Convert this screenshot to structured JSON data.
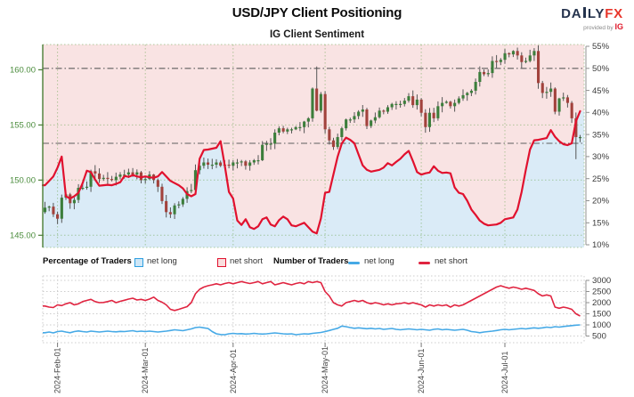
{
  "header": {
    "title": "USD/JPY Client Positioning",
    "subtitle": "IG Client Sentiment"
  },
  "logo": {
    "part1": "DA",
    "part2": "LY",
    "part3": "FX",
    "tagline": "provided by",
    "tagline_brand": "IG"
  },
  "legend": {
    "pct_header": "Percentage of Traders",
    "pct_long": "net long",
    "pct_short": "net short",
    "num_header": "Number of Traders",
    "num_long": "net long",
    "num_short": "net short"
  },
  "colors": {
    "pink_fill": "#f9e3e3",
    "blue_fill": "#daebf7",
    "sentiment_line": "#e1112e",
    "grid_green": "rgba(115,170,90,0.55)",
    "axis_green": "#4a8c3c",
    "spine_green": "#4a7d35",
    "candle_up": "#3c7e3b",
    "candle_down": "#a2423c",
    "wick": "#555555",
    "ref_line": "#5f5f5f",
    "right_axis_text": "#3a3a3a",
    "right_spine": "#909090",
    "bottom_grid": "#cccccc",
    "count_short": "#e02440",
    "count_long": "#45a9e6",
    "date_text": "#444444"
  },
  "chart_data": [
    {
      "type": "candlestick_with_sentiment_area",
      "title": "IG Client Sentiment",
      "price_axis": {
        "side": "left",
        "tick_values": [
          160,
          155,
          150,
          145
        ],
        "tick_labels": [
          "160.00",
          "155.00",
          "150.00",
          "145.00"
        ]
      },
      "pct_axis": {
        "side": "right",
        "min": 10,
        "max": 55,
        "step": 5,
        "tick_labels": [
          "55%",
          "50%",
          "45%",
          "40%",
          "35%",
          "30%",
          "25%",
          "20%",
          "15%",
          "10%"
        ],
        "tick_values": [
          55,
          50,
          45,
          40,
          35,
          30,
          25,
          20,
          15,
          10
        ]
      },
      "ref_lines_pct": [
        50,
        33
      ],
      "x_axis": {
        "tick_labels": [
          "2024-Feb-01",
          "2024-Mar-01",
          "2024-Apr-01",
          "2024-May-01",
          "2024-Jun-01",
          "2024-Jul-01"
        ],
        "tick_indices": [
          3,
          24,
          45,
          67,
          90,
          110
        ]
      },
      "series": {
        "close": [
          147.5,
          147.6,
          146.9,
          146.5,
          148.4,
          148.7,
          147.9,
          148.2,
          149.3,
          149.3,
          149.4,
          150.8,
          150.6,
          150.1,
          150.2,
          150.1,
          150.0,
          150.3,
          150.5,
          150.5,
          150.7,
          150.5,
          150.7,
          150.0,
          150.1,
          150.5,
          150.0,
          149.4,
          148.1,
          147.1,
          146.9,
          147.7,
          147.8,
          148.3,
          149.0,
          149.1,
          150.9,
          151.3,
          151.6,
          151.4,
          151.4,
          151.6,
          151.3,
          151.4,
          151.3,
          151.6,
          151.6,
          151.7,
          151.3,
          151.6,
          151.8,
          151.8,
          153.2,
          153.3,
          153.3,
          154.3,
          154.7,
          154.4,
          154.6,
          154.6,
          154.8,
          154.8,
          155.3,
          155.6,
          158.3,
          156.3,
          157.8,
          154.6,
          153.6,
          153.0,
          153.9,
          154.7,
          155.5,
          155.5,
          155.8,
          156.2,
          156.4,
          154.9,
          155.4,
          155.7,
          156.3,
          156.2,
          156.6,
          156.9,
          156.9,
          156.9,
          157.2,
          157.6,
          156.8,
          157.3,
          156.1,
          154.8,
          156.1,
          155.6,
          156.7,
          157.0,
          157.1,
          156.7,
          157.0,
          157.4,
          157.7,
          157.9,
          158.1,
          158.9,
          159.8,
          159.6,
          159.7,
          160.8,
          160.7,
          160.9,
          161.5,
          161.4,
          161.7,
          161.3,
          160.7,
          160.8,
          161.3,
          161.7,
          158.8,
          157.9,
          158.0,
          158.3,
          156.2,
          157.4,
          157.5,
          157.0,
          155.6,
          153.9,
          153.9
        ],
        "net_long_pct": [
          23.5,
          24.5,
          25.5,
          27.5,
          30.0,
          21.0,
          20.5,
          21.0,
          21.8,
          24.0,
          26.8,
          26.5,
          24.8,
          23.4,
          23.5,
          23.6,
          23.5,
          23.8,
          24.2,
          25.6,
          25.4,
          25.8,
          25.5,
          25.3,
          25.5,
          25.3,
          25.2,
          25.5,
          26.5,
          25.5,
          24.5,
          24.0,
          23.5,
          22.8,
          21.5,
          21.0,
          21.5,
          29.5,
          31.5,
          31.6,
          31.8,
          32.0,
          33.5,
          28.0,
          22.0,
          20.5,
          15.5,
          14.5,
          15.8,
          14.0,
          13.6,
          14.2,
          15.8,
          16.2,
          14.6,
          14.2,
          15.6,
          16.4,
          15.8,
          14.4,
          14.2,
          14.6,
          15.0,
          14.0,
          13.0,
          12.6,
          16.0,
          21.8,
          22.0,
          26.0,
          30.0,
          33.0,
          34.3,
          33.8,
          33.0,
          30.5,
          28.0,
          27.0,
          26.6,
          26.8,
          27.0,
          27.5,
          28.5,
          28.0,
          28.8,
          29.5,
          30.5,
          31.3,
          29.0,
          26.5,
          25.9,
          26.2,
          26.4,
          27.8,
          26.8,
          26.3,
          26.4,
          26.2,
          23.0,
          21.8,
          21.5,
          20.0,
          18.0,
          16.8,
          15.5,
          14.8,
          14.4,
          14.5,
          14.6,
          15.0,
          15.8,
          16.0,
          16.2,
          18.0,
          22.0,
          27.0,
          31.6,
          33.7,
          33.8,
          34.0,
          34.2,
          36.0,
          34.5,
          33.5,
          32.8,
          32.6,
          33.0,
          38.0,
          40.3
        ]
      },
      "wick_overrides": {
        "65": {
          "h": 160.3
        },
        "127": {
          "l": 151.9
        }
      }
    },
    {
      "type": "line",
      "y_axis": {
        "tick_labels": [
          "3000",
          "2500",
          "2000",
          "1500",
          "1000",
          "500"
        ],
        "tick_values": [
          3000,
          2500,
          2000,
          1500,
          1000,
          500
        ]
      },
      "series": [
        {
          "name": "net short",
          "values": [
            1850,
            1800,
            1780,
            1900,
            1870,
            1950,
            2000,
            1900,
            1950,
            2050,
            2100,
            2150,
            2050,
            2000,
            2010,
            2050,
            2100,
            2000,
            2060,
            2110,
            2160,
            2200,
            2120,
            2150,
            2100,
            2160,
            2250,
            2100,
            2020,
            1900,
            1700,
            1650,
            1700,
            1760,
            1820,
            2000,
            2400,
            2600,
            2700,
            2760,
            2800,
            2850,
            2800,
            2860,
            2900,
            2850,
            2900,
            2950,
            2900,
            2860,
            2900,
            2950,
            2850,
            2900,
            2950,
            2800,
            2850,
            2900,
            2850,
            2800,
            2860,
            2900,
            2850,
            2950,
            2900,
            2950,
            2900,
            2500,
            2300,
            2000,
            1900,
            1850,
            2000,
            2050,
            2100,
            2050,
            2100,
            2000,
            1950,
            2000,
            1960,
            1900,
            1950,
            1900,
            1950,
            1960,
            2000,
            1950,
            2000,
            1950,
            1900,
            1800,
            1900,
            1850,
            1900,
            1860,
            1900,
            1800,
            1900,
            1850,
            1900,
            2000,
            2100,
            2200,
            2300,
            2400,
            2500,
            2600,
            2700,
            2760,
            2700,
            2650,
            2700,
            2660,
            2600,
            2650,
            2600,
            2550,
            2400,
            2300,
            2350,
            2300,
            1800,
            1750,
            1800,
            1760,
            1700,
            1500,
            1400
          ]
        },
        {
          "name": "net long",
          "values": [
            650,
            680,
            640,
            700,
            720,
            680,
            650,
            700,
            730,
            700,
            680,
            720,
            700,
            680,
            700,
            720,
            700,
            690,
            710,
            700,
            720,
            740,
            700,
            720,
            700,
            720,
            700,
            680,
            700,
            720,
            750,
            780,
            760,
            740,
            780,
            820,
            880,
            900,
            870,
            840,
            700,
            600,
            570,
            560,
            600,
            620,
            600,
            610,
            590,
            600,
            620,
            600,
            590,
            600,
            620,
            640,
            620,
            600,
            590,
            600,
            560,
            580,
            600,
            590,
            620,
            640,
            660,
            700,
            750,
            800,
            850,
            950,
            920,
            880,
            850,
            870,
            850,
            830,
            850,
            820,
            840,
            800,
            820,
            840,
            800,
            780,
            800,
            820,
            800,
            780,
            800,
            780,
            760,
            800,
            820,
            780,
            800,
            780,
            760,
            780,
            800,
            760,
            700,
            680,
            650,
            680,
            700,
            720,
            750,
            780,
            800,
            780,
            800,
            820,
            840,
            820,
            850,
            870,
            850,
            870,
            900,
            880,
            920,
            900,
            930,
            950,
            970,
            990,
            1000
          ]
        }
      ]
    }
  ]
}
